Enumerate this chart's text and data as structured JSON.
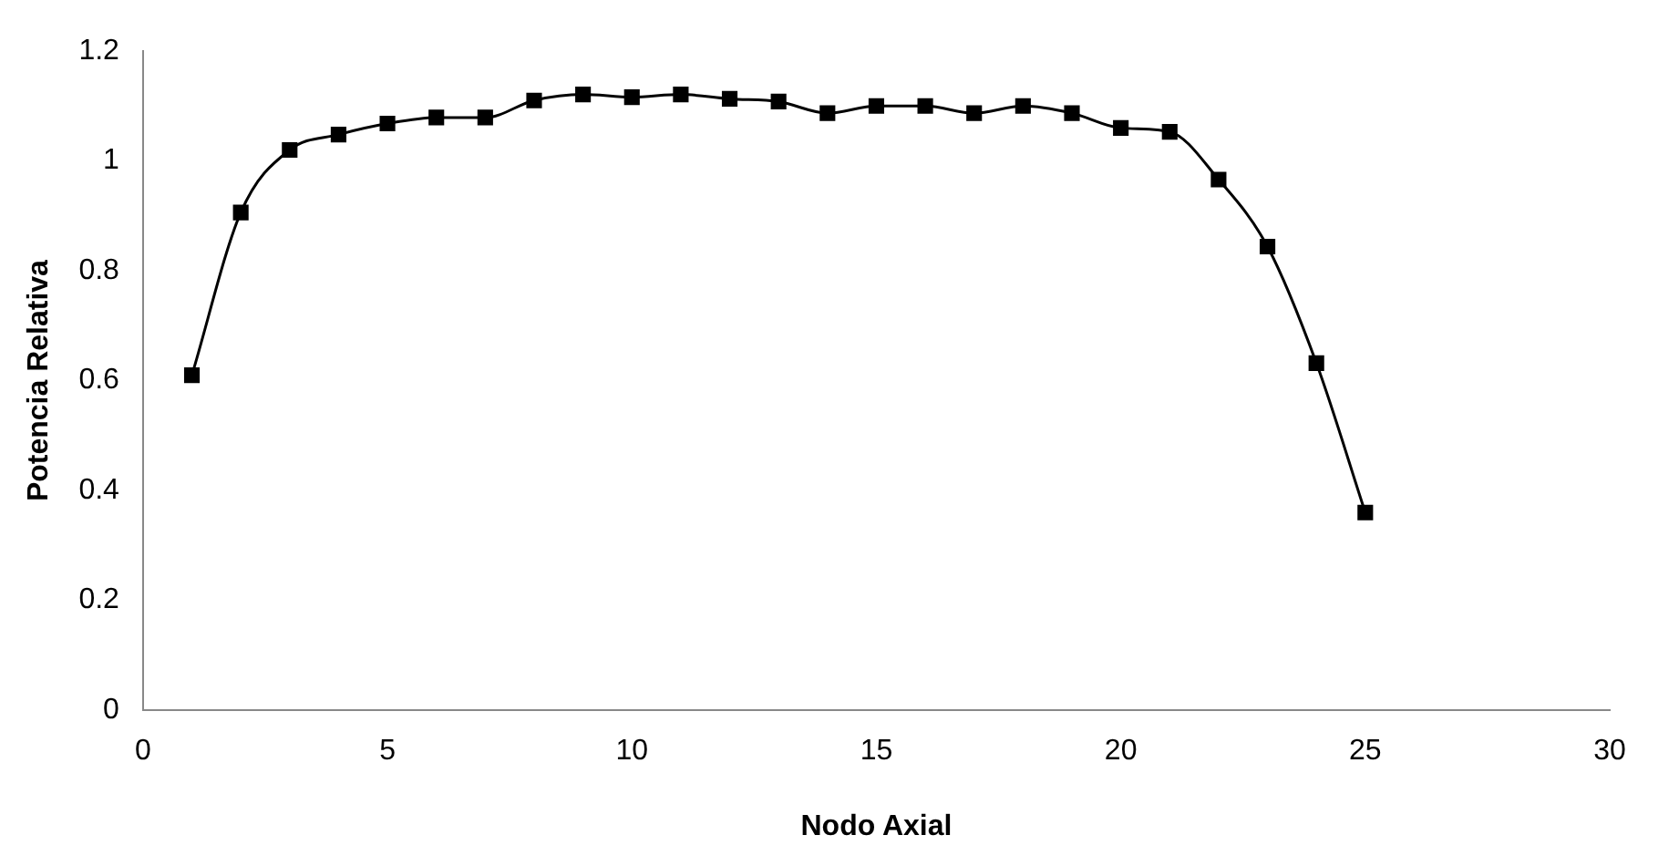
{
  "chart_data": {
    "type": "line",
    "xlabel": "Nodo Axial",
    "ylabel": "Potencia Relativa",
    "x": [
      1,
      2,
      3,
      4,
      5,
      6,
      7,
      8,
      9,
      10,
      11,
      12,
      13,
      14,
      15,
      16,
      17,
      18,
      19,
      20,
      21,
      22,
      23,
      24,
      25
    ],
    "series": [
      {
        "color": "#000000",
        "values": [
          0.61,
          0.906,
          1.02,
          1.048,
          1.068,
          1.079,
          1.079,
          1.11,
          1.121,
          1.116,
          1.121,
          1.113,
          1.108,
          1.087,
          1.1,
          1.1,
          1.087,
          1.1,
          1.087,
          1.06,
          1.053,
          0.966,
          0.844,
          0.632,
          0.36
        ]
      }
    ],
    "xlim": [
      0,
      30
    ],
    "xticks": [
      0,
      5,
      10,
      15,
      20,
      25,
      30
    ],
    "ylim": [
      0,
      1.2
    ],
    "yticks": [
      0,
      0.2,
      0.4,
      0.6,
      0.8,
      1,
      1.2
    ],
    "grid": false,
    "legend": false,
    "marker": "square",
    "line_style": "solid"
  }
}
